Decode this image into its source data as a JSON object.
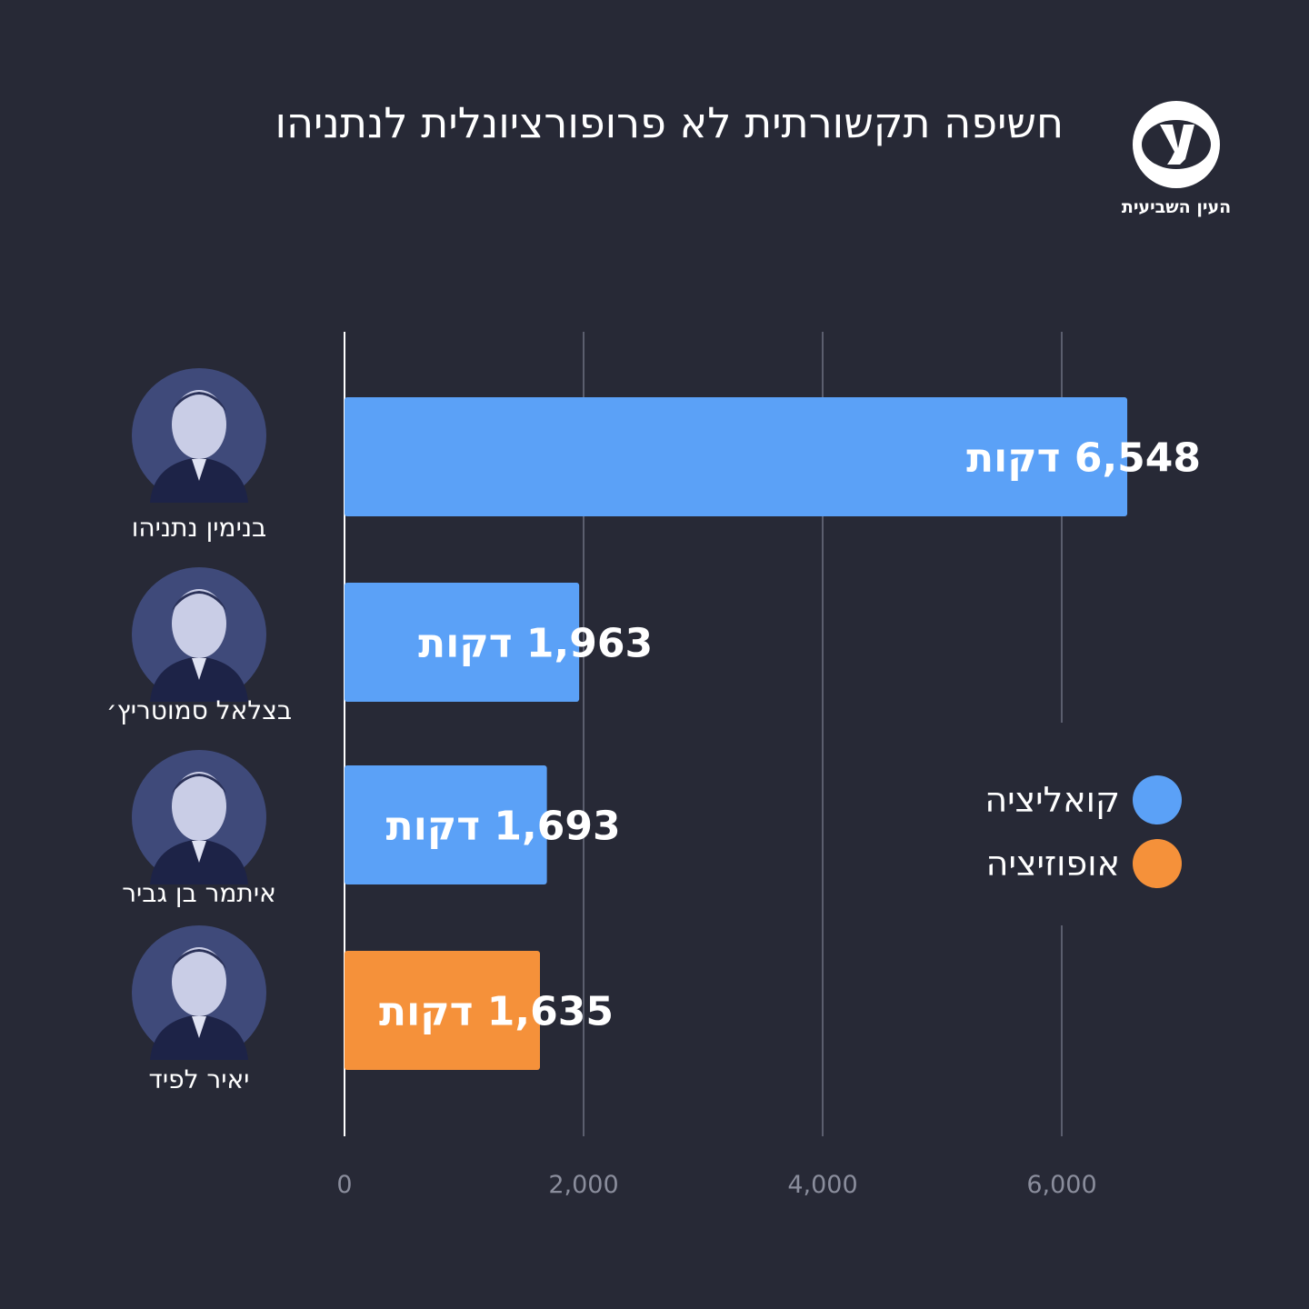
{
  "header": {
    "title": "חשיפה תקשורתית לא פרופורציונלית לנתניהו",
    "logo_text": "העין השביעית",
    "logo_icon": "eye-ayin-logo-icon"
  },
  "colors": {
    "background": "#272936",
    "coalition": "#5ba1f7",
    "opposition": "#f5913a",
    "grid": "#5b5e6e",
    "axis": "#ffffff",
    "portrait_bg": "#3f4a7a"
  },
  "legend": [
    {
      "label": "קואליציה",
      "color": "#5ba1f7"
    },
    {
      "label": "אופוזיציה",
      "color": "#f5913a"
    }
  ],
  "people": [
    {
      "name": "בנימין נתניהו",
      "portrait_icon": "portrait-netanyahu-icon"
    },
    {
      "name": "בצלאל סמוטריץ׳",
      "portrait_icon": "portrait-smotrich-icon"
    },
    {
      "name": "איתמר בן גביר",
      "portrait_icon": "portrait-ben-gvir-icon"
    },
    {
      "name": "יאיר לפיד",
      "portrait_icon": "portrait-lapid-icon"
    }
  ],
  "chart_data": {
    "type": "bar",
    "orientation": "horizontal",
    "categories": [
      "בנימין נתניהו",
      "בצלאל סמוטריץ׳",
      "איתמר בן גביר",
      "יאיר לפיד"
    ],
    "values": [
      6548,
      1963,
      1693,
      1635
    ],
    "groups": [
      "קואליציה",
      "קואליציה",
      "קואליציה",
      "אופוזיציה"
    ],
    "data_labels": [
      "6,548 דקות",
      "1,963 דקות",
      "1,693 דקות",
      "1,635 דקות"
    ],
    "xlim": [
      0,
      6600
    ],
    "xticks": [
      0,
      2000,
      4000,
      6000
    ],
    "xtick_labels": [
      "0",
      "2,000",
      "4,000",
      "6,000"
    ],
    "grid": true,
    "legend_position": "right"
  }
}
